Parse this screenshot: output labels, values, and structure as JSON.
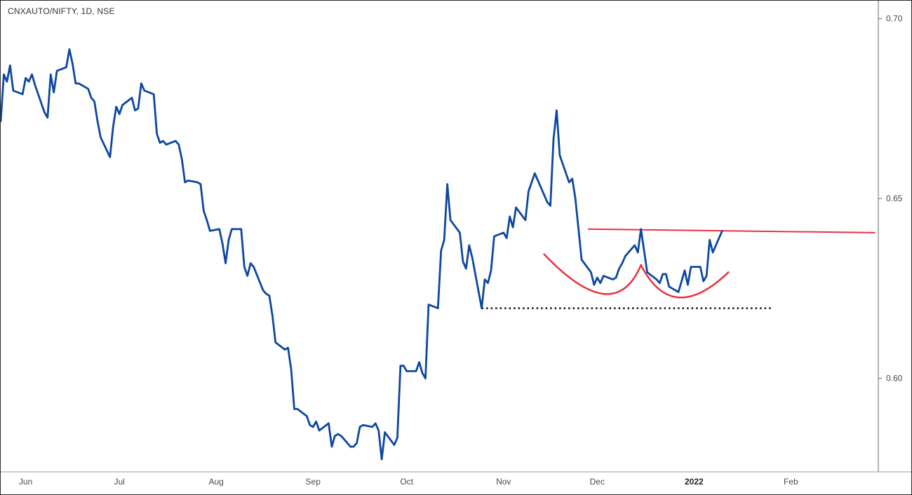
{
  "chart_data": {
    "type": "line",
    "title": "CNXAUTO/NIFTY, 1D, NSE",
    "ylim": [
      0.574,
      0.705
    ],
    "y_ticks": [
      0.6,
      0.65,
      0.7
    ],
    "y_tick_labels": [
      "0.60",
      "0.65",
      "0.70"
    ],
    "x_range": [
      "2021-05-24",
      "2022-03-01"
    ],
    "x_ticks": [
      {
        "date": "2021-06-01",
        "label": "Jun"
      },
      {
        "date": "2021-07-01",
        "label": "Jul"
      },
      {
        "date": "2021-08-01",
        "label": "Aug"
      },
      {
        "date": "2021-09-01",
        "label": "Sep"
      },
      {
        "date": "2021-10-01",
        "label": "Oct"
      },
      {
        "date": "2021-11-01",
        "label": "Nov"
      },
      {
        "date": "2021-12-01",
        "label": "Dec"
      },
      {
        "date": "2022-01-01",
        "label": "2022",
        "bold": true
      },
      {
        "date": "2022-02-01",
        "label": "Feb"
      }
    ],
    "grid": false,
    "series": [
      {
        "color": "#0d47a1",
        "points": [
          [
            "2021-05-24",
            0.6715
          ],
          [
            "2021-05-25",
            0.6845
          ],
          [
            "2021-05-26",
            0.6825
          ],
          [
            "2021-05-27",
            0.687
          ],
          [
            "2021-05-28",
            0.68
          ],
          [
            "2021-05-31",
            0.679
          ],
          [
            "2021-06-01",
            0.6835
          ],
          [
            "2021-06-02",
            0.6825
          ],
          [
            "2021-06-03",
            0.6845
          ],
          [
            "2021-06-04",
            0.6815
          ],
          [
            "2021-06-07",
            0.674
          ],
          [
            "2021-06-08",
            0.6725
          ],
          [
            "2021-06-09",
            0.6845
          ],
          [
            "2021-06-10",
            0.6795
          ],
          [
            "2021-06-11",
            0.6855
          ],
          [
            "2021-06-14",
            0.6865
          ],
          [
            "2021-06-15",
            0.6915
          ],
          [
            "2021-06-16",
            0.6875
          ],
          [
            "2021-06-17",
            0.682
          ],
          [
            "2021-06-18",
            0.682
          ],
          [
            "2021-06-21",
            0.6805
          ],
          [
            "2021-06-22",
            0.678
          ],
          [
            "2021-06-23",
            0.677
          ],
          [
            "2021-06-24",
            0.6715
          ],
          [
            "2021-06-25",
            0.667
          ],
          [
            "2021-06-28",
            0.6615
          ],
          [
            "2021-06-29",
            0.67
          ],
          [
            "2021-06-30",
            0.6755
          ],
          [
            "2021-07-01",
            0.6735
          ],
          [
            "2021-07-02",
            0.676
          ],
          [
            "2021-07-05",
            0.678
          ],
          [
            "2021-07-06",
            0.6745
          ],
          [
            "2021-07-07",
            0.675
          ],
          [
            "2021-07-08",
            0.682
          ],
          [
            "2021-07-09",
            0.68
          ],
          [
            "2021-07-12",
            0.679
          ],
          [
            "2021-07-13",
            0.668
          ],
          [
            "2021-07-14",
            0.6655
          ],
          [
            "2021-07-15",
            0.666
          ],
          [
            "2021-07-16",
            0.665
          ],
          [
            "2021-07-19",
            0.666
          ],
          [
            "2021-07-20",
            0.665
          ],
          [
            "2021-07-21",
            0.661
          ],
          [
            "2021-07-22",
            0.6545
          ],
          [
            "2021-07-23",
            0.655
          ],
          [
            "2021-07-26",
            0.6545
          ],
          [
            "2021-07-27",
            0.654
          ],
          [
            "2021-07-28",
            0.6465
          ],
          [
            "2021-07-29",
            0.644
          ],
          [
            "2021-07-30",
            0.641
          ],
          [
            "2021-08-02",
            0.6415
          ],
          [
            "2021-08-03",
            0.6375
          ],
          [
            "2021-08-04",
            0.632
          ],
          [
            "2021-08-05",
            0.6385
          ],
          [
            "2021-08-06",
            0.6415
          ],
          [
            "2021-08-09",
            0.6415
          ],
          [
            "2021-08-10",
            0.631
          ],
          [
            "2021-08-11",
            0.6285
          ],
          [
            "2021-08-12",
            0.632
          ],
          [
            "2021-08-13",
            0.631
          ],
          [
            "2021-08-16",
            0.6245
          ],
          [
            "2021-08-17",
            0.6235
          ],
          [
            "2021-08-18",
            0.623
          ],
          [
            "2021-08-19",
            0.6175
          ],
          [
            "2021-08-20",
            0.61
          ],
          [
            "2021-08-23",
            0.608
          ],
          [
            "2021-08-24",
            0.6085
          ],
          [
            "2021-08-25",
            0.6025
          ],
          [
            "2021-08-26",
            0.5915
          ],
          [
            "2021-08-27",
            0.5915
          ],
          [
            "2021-08-30",
            0.5895
          ],
          [
            "2021-08-31",
            0.587
          ],
          [
            "2021-09-01",
            0.5865
          ],
          [
            "2021-09-02",
            0.588
          ],
          [
            "2021-09-03",
            0.5855
          ],
          [
            "2021-09-06",
            0.5875
          ],
          [
            "2021-09-07",
            0.581
          ],
          [
            "2021-09-08",
            0.584
          ],
          [
            "2021-09-09",
            0.5845
          ],
          [
            "2021-09-10",
            0.584
          ],
          [
            "2021-09-13",
            0.581
          ],
          [
            "2021-09-14",
            0.581
          ],
          [
            "2021-09-15",
            0.582
          ],
          [
            "2021-09-16",
            0.5865
          ],
          [
            "2021-09-17",
            0.587
          ],
          [
            "2021-09-20",
            0.5865
          ],
          [
            "2021-09-21",
            0.5875
          ],
          [
            "2021-09-22",
            0.5855
          ],
          [
            "2021-09-23",
            0.5775
          ],
          [
            "2021-09-24",
            0.585
          ],
          [
            "2021-09-27",
            0.5815
          ],
          [
            "2021-09-28",
            0.5835
          ],
          [
            "2021-09-29",
            0.6035
          ],
          [
            "2021-09-30",
            0.6035
          ],
          [
            "2021-10-01",
            0.602
          ],
          [
            "2021-10-04",
            0.602
          ],
          [
            "2021-10-05",
            0.6045
          ],
          [
            "2021-10-06",
            0.6015
          ],
          [
            "2021-10-07",
            0.6
          ],
          [
            "2021-10-08",
            0.6205
          ],
          [
            "2021-10-11",
            0.6195
          ],
          [
            "2021-10-12",
            0.6355
          ],
          [
            "2021-10-13",
            0.6385
          ],
          [
            "2021-10-14",
            0.654
          ],
          [
            "2021-10-15",
            0.644
          ],
          [
            "2021-10-18",
            0.6405
          ],
          [
            "2021-10-19",
            0.6325
          ],
          [
            "2021-10-20",
            0.6305
          ],
          [
            "2021-10-21",
            0.637
          ],
          [
            "2021-10-22",
            0.6335
          ],
          [
            "2021-10-25",
            0.6195
          ],
          [
            "2021-10-26",
            0.6275
          ],
          [
            "2021-10-27",
            0.6265
          ],
          [
            "2021-10-28",
            0.63
          ],
          [
            "2021-10-29",
            0.6395
          ],
          [
            "2021-11-01",
            0.6405
          ],
          [
            "2021-11-02",
            0.639
          ],
          [
            "2021-11-03",
            0.645
          ],
          [
            "2021-11-04",
            0.642
          ],
          [
            "2021-11-05",
            0.6475
          ],
          [
            "2021-11-08",
            0.644
          ],
          [
            "2021-11-09",
            0.652
          ],
          [
            "2021-11-10",
            0.6545
          ],
          [
            "2021-11-11",
            0.657
          ],
          [
            "2021-11-12",
            0.655
          ],
          [
            "2021-11-15",
            0.649
          ],
          [
            "2021-11-16",
            0.648
          ],
          [
            "2021-11-17",
            0.6665
          ],
          [
            "2021-11-18",
            0.6745
          ],
          [
            "2021-11-19",
            0.662
          ],
          [
            "2021-11-22",
            0.6545
          ],
          [
            "2021-11-23",
            0.6555
          ],
          [
            "2021-11-24",
            0.65
          ],
          [
            "2021-11-25",
            0.6415
          ],
          [
            "2021-11-26",
            0.633
          ],
          [
            "2021-11-29",
            0.6295
          ],
          [
            "2021-11-30",
            0.626
          ],
          [
            "2021-12-01",
            0.628
          ],
          [
            "2021-12-02",
            0.6265
          ],
          [
            "2021-12-03",
            0.6285
          ],
          [
            "2021-12-06",
            0.6275
          ],
          [
            "2021-12-07",
            0.628
          ],
          [
            "2021-12-08",
            0.6305
          ],
          [
            "2021-12-09",
            0.632
          ],
          [
            "2021-12-10",
            0.634
          ],
          [
            "2021-12-13",
            0.637
          ],
          [
            "2021-12-14",
            0.635
          ],
          [
            "2021-12-15",
            0.6415
          ],
          [
            "2021-12-16",
            0.6355
          ],
          [
            "2021-12-17",
            0.6295
          ],
          [
            "2021-12-20",
            0.6275
          ],
          [
            "2021-12-21",
            0.6265
          ],
          [
            "2021-12-22",
            0.629
          ],
          [
            "2021-12-23",
            0.629
          ],
          [
            "2021-12-24",
            0.6255
          ],
          [
            "2021-12-27",
            0.624
          ],
          [
            "2021-12-28",
            0.627
          ],
          [
            "2021-12-29",
            0.63
          ],
          [
            "2021-12-30",
            0.626
          ],
          [
            "2021-12-31",
            0.631
          ],
          [
            "2022-01-03",
            0.631
          ],
          [
            "2022-01-04",
            0.627
          ],
          [
            "2022-01-05",
            0.6285
          ],
          [
            "2022-01-06",
            0.6385
          ],
          [
            "2022-01-07",
            0.635
          ],
          [
            "2022-01-10",
            0.641
          ]
        ]
      }
    ],
    "annotations": [
      {
        "kind": "resistance-line",
        "color": "#e8333f",
        "from": [
          "2021-11-28",
          0.6415
        ],
        "to": [
          "2022-02-28",
          0.6405
        ]
      },
      {
        "kind": "support-dotted-line",
        "color": "#111111",
        "from": [
          "2021-10-25",
          0.6195
        ],
        "to": [
          "2022-01-26",
          0.6195
        ]
      },
      {
        "kind": "cup-arc",
        "color": "#e8333f",
        "from": [
          "2021-11-14",
          0.6345
        ],
        "bottom": [
          "2021-12-03",
          0.6235
        ],
        "to": [
          "2021-12-15",
          0.6315
        ]
      },
      {
        "kind": "cup-arc",
        "color": "#e8333f",
        "from": [
          "2021-12-15",
          0.6315
        ],
        "bottom": [
          "2021-12-27",
          0.6225
        ],
        "to": [
          "2022-01-12",
          0.6295
        ]
      }
    ]
  }
}
